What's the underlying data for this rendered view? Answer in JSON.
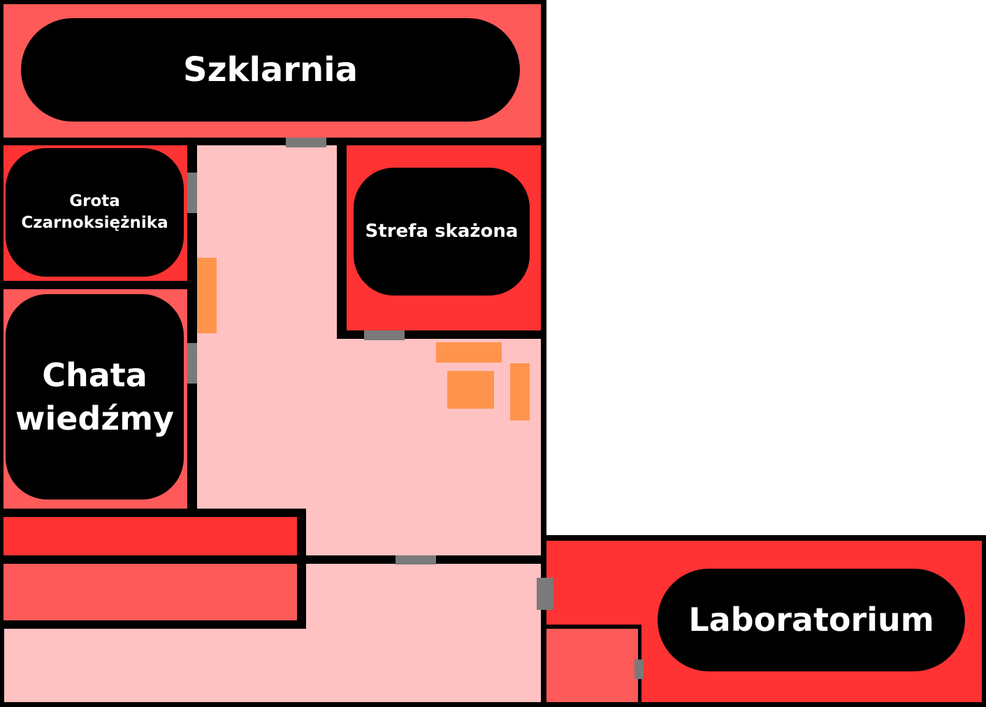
{
  "colors": {
    "wall": "#000000",
    "corridor": "#ffc2c2",
    "room_light": "#ff5a5a",
    "room_dark": "#ff3333",
    "door": "#7a7a7a",
    "furniture": "#ff944d",
    "label_bg": "#000000",
    "label_text": "#ffffff"
  },
  "rooms": {
    "szklarnia": "Szklarnia",
    "grota": "Grota\nCzarnoksiężnika",
    "strefa": "Strefa skażona",
    "chata": "Chata\nwiedźmy",
    "laboratorium": "Laboratorium"
  }
}
